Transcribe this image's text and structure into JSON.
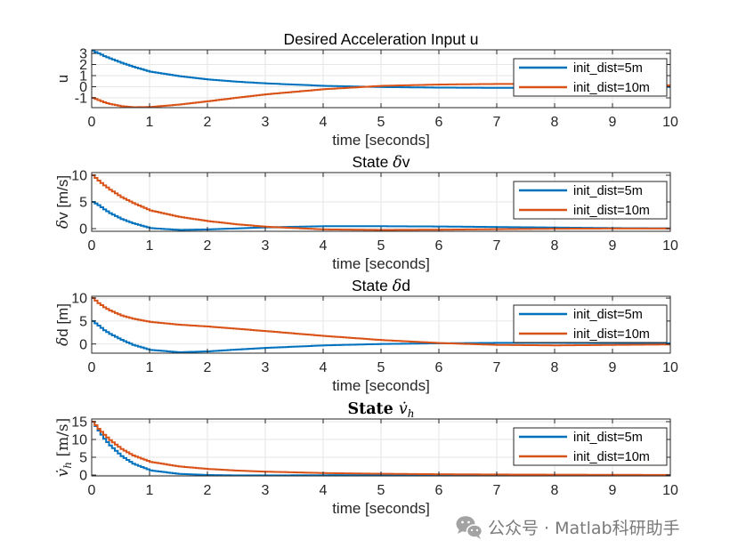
{
  "colors": {
    "background": "#ffffff",
    "axis": "#262626",
    "grid": "#e6e6e6",
    "watermark": "#7a7a7a"
  },
  "chart_data": [
    {
      "type": "line",
      "style": "stairs",
      "title": [
        {
          "t": "Desired Acceleration Input u",
          "style": "plain"
        }
      ],
      "xlabel": "time [seconds]",
      "ylabel": [
        {
          "t": "u",
          "style": "plain"
        }
      ],
      "xlim": [
        0,
        10
      ],
      "ylim": [
        -1.88,
        3.32
      ],
      "xticks": [
        0,
        1,
        2,
        3,
        4,
        5,
        6,
        7,
        8,
        9,
        10
      ],
      "yticks": [
        -1,
        0,
        1,
        2,
        3
      ],
      "grid": true,
      "legend": {
        "location": "northeast"
      },
      "x": [
        0,
        0.1,
        0.2,
        0.3,
        0.5,
        0.7,
        1,
        1.5,
        2,
        2.5,
        3,
        4,
        5,
        6,
        7,
        8,
        9,
        10
      ],
      "series": [
        {
          "name": "init_dist=5m",
          "color": "#0072BD",
          "values": [
            3.25,
            3.0,
            2.75,
            2.55,
            2.15,
            1.8,
            1.35,
            0.95,
            0.65,
            0.45,
            0.3,
            0.08,
            -0.03,
            -0.08,
            -0.1,
            -0.08,
            -0.05,
            -0.02
          ]
        },
        {
          "name": "init_dist=10m",
          "color": "#D95319",
          "values": [
            -1.0,
            -1.2,
            -1.4,
            -1.55,
            -1.75,
            -1.84,
            -1.82,
            -1.6,
            -1.3,
            -0.98,
            -0.68,
            -0.22,
            0.08,
            0.2,
            0.25,
            0.25,
            0.2,
            0.12
          ]
        }
      ]
    },
    {
      "type": "line",
      "style": "stairs",
      "title": [
        {
          "t": "State ",
          "style": "plain"
        },
        {
          "t": "δ",
          "style": "math"
        },
        {
          "t": "v",
          "style": "plain"
        }
      ],
      "xlabel": "time [seconds]",
      "ylabel": [
        {
          "t": "δ",
          "style": "math"
        },
        {
          "t": "v [m/s]",
          "style": "plain"
        }
      ],
      "xlim": [
        0,
        10
      ],
      "ylim": [
        -0.5,
        10.5
      ],
      "xticks": [
        0,
        1,
        2,
        3,
        4,
        5,
        6,
        7,
        8,
        9,
        10
      ],
      "yticks": [
        0,
        5,
        10
      ],
      "grid": true,
      "legend": {
        "location": "northeast"
      },
      "x": [
        0,
        0.1,
        0.2,
        0.3,
        0.5,
        0.7,
        1,
        1.5,
        2,
        2.5,
        3,
        4,
        5,
        6,
        7,
        8,
        9,
        10
      ],
      "series": [
        {
          "name": "init_dist=5m",
          "color": "#0072BD",
          "values": [
            5.0,
            4.4,
            3.6,
            2.9,
            1.8,
            1.0,
            0.1,
            -0.25,
            -0.15,
            0.05,
            0.25,
            0.45,
            0.45,
            0.4,
            0.3,
            0.2,
            0.1,
            0.05
          ]
        },
        {
          "name": "init_dist=10m",
          "color": "#D95319",
          "values": [
            10.0,
            9.0,
            8.1,
            7.3,
            5.9,
            4.8,
            3.4,
            2.2,
            1.4,
            0.8,
            0.35,
            -0.15,
            -0.25,
            -0.2,
            -0.1,
            -0.02,
            0.02,
            0.02
          ]
        }
      ]
    },
    {
      "type": "line",
      "style": "stairs",
      "title": [
        {
          "t": "State ",
          "style": "plain"
        },
        {
          "t": "δ",
          "style": "math"
        },
        {
          "t": "d",
          "style": "plain"
        }
      ],
      "xlabel": "time [seconds]",
      "ylabel": [
        {
          "t": "δ",
          "style": "math"
        },
        {
          "t": "d [m]",
          "style": "plain"
        }
      ],
      "xlim": [
        0,
        10
      ],
      "ylim": [
        -2,
        10.4
      ],
      "xticks": [
        0,
        1,
        2,
        3,
        4,
        5,
        6,
        7,
        8,
        9,
        10
      ],
      "yticks": [
        0,
        5,
        10
      ],
      "grid": true,
      "legend": {
        "location": "northeast"
      },
      "x": [
        0,
        0.1,
        0.2,
        0.3,
        0.5,
        0.7,
        1,
        1.5,
        2,
        2.5,
        3,
        4,
        5,
        6,
        7,
        8,
        9,
        10
      ],
      "series": [
        {
          "name": "init_dist=5m",
          "color": "#0072BD",
          "values": [
            5.0,
            4.0,
            3.0,
            2.2,
            0.9,
            -0.2,
            -1.3,
            -1.8,
            -1.6,
            -1.2,
            -0.85,
            -0.3,
            0.0,
            0.15,
            0.25,
            0.25,
            0.2,
            0.15
          ]
        },
        {
          "name": "init_dist=10m",
          "color": "#D95319",
          "values": [
            10.0,
            8.9,
            8.0,
            7.3,
            6.2,
            5.5,
            4.8,
            4.2,
            3.8,
            3.3,
            2.8,
            1.75,
            0.85,
            0.2,
            -0.2,
            -0.3,
            -0.2,
            -0.1
          ]
        }
      ]
    },
    {
      "type": "line",
      "style": "stairs",
      "title": [
        {
          "t": "State ",
          "style": "serif-bold"
        },
        {
          "t": "v̇",
          "style": "math"
        },
        {
          "t": "h",
          "style": "sub"
        }
      ],
      "xlabel": "time [seconds]",
      "ylabel": [
        {
          "t": "v̇",
          "style": "math"
        },
        {
          "t": "h",
          "style": "sub"
        },
        {
          "t": " [m/s]",
          "style": "serif"
        }
      ],
      "xlim": [
        0,
        10
      ],
      "ylim": [
        -0.25,
        15.75
      ],
      "xticks": [
        0,
        1,
        2,
        3,
        4,
        5,
        6,
        7,
        8,
        9,
        10
      ],
      "yticks": [
        0,
        5,
        10,
        15
      ],
      "grid": true,
      "legend": {
        "location": "northeast"
      },
      "x": [
        0,
        0.1,
        0.2,
        0.3,
        0.5,
        0.7,
        1,
        1.5,
        2,
        2.5,
        3,
        4,
        5,
        6,
        7,
        8,
        9,
        10
      ],
      "series": [
        {
          "name": "init_dist=5m",
          "color": "#0072BD",
          "values": [
            15.0,
            12.5,
            10.2,
            8.3,
            5.3,
            3.2,
            1.3,
            0.3,
            0.0,
            -0.1,
            -0.1,
            -0.05,
            0.0,
            0.0,
            0.0,
            0.0,
            0.0,
            0.0
          ]
        },
        {
          "name": "init_dist=10m",
          "color": "#D95319",
          "values": [
            15.0,
            13.0,
            11.3,
            9.8,
            7.3,
            5.5,
            3.7,
            2.4,
            1.7,
            1.25,
            0.95,
            0.55,
            0.35,
            0.22,
            0.15,
            0.1,
            0.06,
            0.03
          ]
        }
      ]
    }
  ],
  "watermark": {
    "text": "公众号 · Matlab科研助手",
    "icon": "wechat-icon"
  }
}
